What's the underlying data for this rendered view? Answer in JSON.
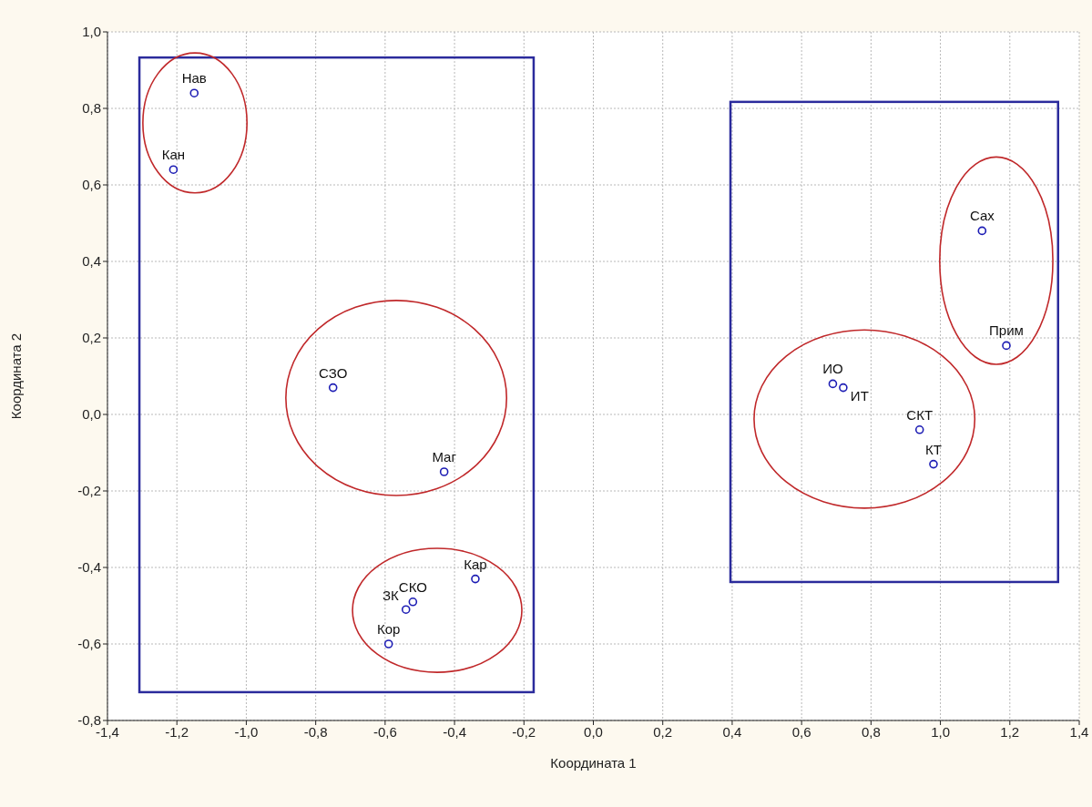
{
  "chart_data": {
    "type": "scatter",
    "xlabel": "Координата 1",
    "ylabel": "Координата 2",
    "color": "#1c1cb4",
    "marker": "circle",
    "grid": true,
    "x": [
      -1.15,
      -1.21,
      -0.75,
      -0.43,
      -0.34,
      -0.52,
      -0.54,
      -0.59,
      1.12,
      1.19,
      0.69,
      0.72,
      0.94,
      0.98
    ],
    "values": [
      0.84,
      0.64,
      0.07,
      -0.15,
      -0.43,
      -0.49,
      -0.51,
      -0.6,
      0.48,
      0.18,
      0.08,
      0.07,
      -0.04,
      -0.13
    ],
    "xlim": [
      -1.4,
      1.4
    ],
    "xticks": [
      {
        "value": -1.4,
        "label": "-1,4"
      },
      {
        "value": -1.2,
        "label": "-1,2"
      },
      {
        "value": -1.0,
        "label": "-1,0"
      },
      {
        "value": -0.8,
        "label": "-0,8"
      },
      {
        "value": -0.6,
        "label": "-0,6"
      },
      {
        "value": -0.4,
        "label": "-0,4"
      },
      {
        "value": -0.2,
        "label": "-0,2"
      },
      {
        "value": 0,
        "label": "0,0"
      },
      {
        "value": 0.2,
        "label": "0,2"
      },
      {
        "value": 0.4,
        "label": "0,4"
      },
      {
        "value": 0.6,
        "label": "0,6"
      },
      {
        "value": 0.8,
        "label": "0,8"
      },
      {
        "value": 1.0,
        "label": "1,0"
      },
      {
        "value": 1.2,
        "label": "1,2"
      },
      {
        "value": 1.4,
        "label": "1,4"
      }
    ],
    "ylim": [
      -0.8,
      1.0
    ],
    "yticks": [
      {
        "value": -0.8,
        "label": "-0,8"
      },
      {
        "value": -0.6,
        "label": "-0,6"
      },
      {
        "value": -0.4,
        "label": "-0,4"
      },
      {
        "value": -0.2,
        "label": "-0,2"
      },
      {
        "value": 0,
        "label": "0,0"
      },
      {
        "value": 0.2,
        "label": "0,2"
      },
      {
        "value": 0.4,
        "label": "0,4"
      },
      {
        "value": 0.6,
        "label": "0,6"
      },
      {
        "value": 0.8,
        "label": "0,8"
      },
      {
        "value": 1.0,
        "label": "1,0"
      }
    ],
    "annotations": [
      {
        "text": "Нав",
        "x": -1.15,
        "y": 0.84
      },
      {
        "text": "Кан",
        "x": -1.21,
        "y": 0.64
      },
      {
        "text": "СЗО",
        "x": -0.75,
        "y": 0.07
      },
      {
        "text": "Маг",
        "x": -0.43,
        "y": -0.15
      },
      {
        "text": "Кар",
        "x": -0.34,
        "y": -0.43
      },
      {
        "text": "СКО",
        "x": -0.52,
        "y": -0.49
      },
      {
        "text": "ЗК",
        "x": -0.54,
        "y": -0.51
      },
      {
        "text": "Кор",
        "x": -0.59,
        "y": -0.6
      },
      {
        "text": "Сах",
        "x": 1.12,
        "y": 0.48
      },
      {
        "text": "Прим",
        "x": 1.19,
        "y": 0.18
      },
      {
        "text": "ИО",
        "x": 0.69,
        "y": 0.08
      },
      {
        "text": "ИТ",
        "x": 0.72,
        "y": 0.07
      },
      {
        "text": "СКТ",
        "x": 0.94,
        "y": -0.04
      },
      {
        "text": "КТ",
        "x": 0.98,
        "y": -0.13
      }
    ]
  }
}
